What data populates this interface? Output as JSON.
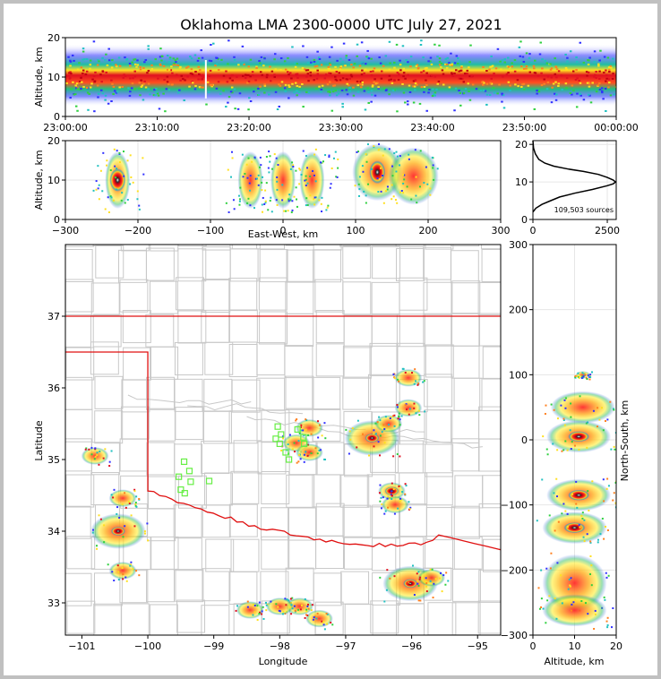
{
  "chart_data": [
    {
      "type": "heatmap",
      "panel": "time-altitude",
      "title": "Oklahoma LMA 2300-0000 UTC July 27, 2021",
      "ylabel": "Altitude, km",
      "xticks": [
        "23:00:00",
        "23:10:00",
        "23:20:00",
        "23:30:00",
        "23:40:00",
        "23:50:00",
        "00:00:00"
      ],
      "yticks": [
        "0",
        "10",
        "20"
      ],
      "xlim": [
        "23:00:00",
        "00:00:00"
      ],
      "ylim": [
        0,
        20
      ]
    },
    {
      "type": "heatmap",
      "panel": "east-west-altitude",
      "xlabel": "East-West, km",
      "ylabel": "Altitude, km",
      "xticks": [
        "−300",
        "−200",
        "−100",
        "0",
        "100",
        "200",
        "300"
      ],
      "yticks": [
        "0",
        "10",
        "20"
      ],
      "xlim": [
        -300,
        300
      ],
      "ylim": [
        0,
        20
      ],
      "clusters_km": [
        {
          "x": -228,
          "alt": 10
        },
        {
          "x": -45,
          "alt": 10
        },
        {
          "x": 0,
          "alt": 10
        },
        {
          "x": 40,
          "alt": 10
        },
        {
          "x": 130,
          "alt": 12
        },
        {
          "x": 180,
          "alt": 11
        }
      ]
    },
    {
      "type": "line",
      "panel": "altitude-histogram",
      "annotation": "109,503 sources",
      "xticks": [
        "0",
        "2500"
      ],
      "yticks": [
        "0",
        "10",
        "20"
      ],
      "xlim": [
        0,
        2800
      ],
      "ylim": [
        0,
        21
      ],
      "series": [
        {
          "values": [
            [
              0,
              2
            ],
            [
              100,
              3
            ],
            [
              300,
              4
            ],
            [
              600,
              5
            ],
            [
              900,
              6
            ],
            [
              1400,
              7
            ],
            [
              2000,
              8
            ],
            [
              2500,
              9
            ],
            [
              2700,
              9.5
            ],
            [
              2780,
              10
            ],
            [
              2700,
              10.5
            ],
            [
              2500,
              11.2
            ],
            [
              2200,
              12
            ],
            [
              1700,
              12.8
            ],
            [
              1200,
              13.4
            ],
            [
              700,
              14.2
            ],
            [
              400,
              15
            ],
            [
              200,
              16
            ],
            [
              80,
              17.5
            ],
            [
              20,
              19
            ],
            [
              0,
              21
            ]
          ]
        }
      ]
    },
    {
      "type": "heatmap",
      "panel": "plan-view-map",
      "xlabel": "Longitude",
      "ylabel": "Latitude",
      "xticks": [
        "−101",
        "−100",
        "−99",
        "−98",
        "−97",
        "−96",
        "−95"
      ],
      "yticks": [
        "33",
        "34",
        "35",
        "36",
        "37"
      ],
      "xlim": [
        -101.25,
        -94.65
      ],
      "ylim": [
        32.55,
        38.0
      ],
      "stations": [
        {
          "lon": -98.03,
          "lat": 35.46
        },
        {
          "lon": -97.98,
          "lat": 35.35
        },
        {
          "lon": -98.06,
          "lat": 35.29
        },
        {
          "lon": -98.0,
          "lat": 35.22
        },
        {
          "lon": -97.91,
          "lat": 35.1
        },
        {
          "lon": -97.86,
          "lat": 35.0
        },
        {
          "lon": -97.73,
          "lat": 35.42
        },
        {
          "lon": -97.64,
          "lat": 35.31
        },
        {
          "lon": -97.63,
          "lat": 35.22
        },
        {
          "lon": -99.45,
          "lat": 34.97
        },
        {
          "lon": -99.37,
          "lat": 34.84
        },
        {
          "lon": -99.53,
          "lat": 34.76
        },
        {
          "lon": -99.35,
          "lat": 34.69
        },
        {
          "lon": -99.5,
          "lat": 34.58
        },
        {
          "lon": -99.44,
          "lat": 34.53
        },
        {
          "lon": -99.07,
          "lat": 34.7
        }
      ],
      "clusters": [
        {
          "lon": -100.45,
          "lat": 34.0
        },
        {
          "lon": -100.38,
          "lat": 34.46
        },
        {
          "lon": -100.38,
          "lat": 33.45
        },
        {
          "lon": -97.75,
          "lat": 35.23
        },
        {
          "lon": -97.55,
          "lat": 35.44
        },
        {
          "lon": -97.55,
          "lat": 35.1
        },
        {
          "lon": -96.6,
          "lat": 35.3
        },
        {
          "lon": -96.35,
          "lat": 35.5
        },
        {
          "lon": -96.05,
          "lat": 35.72
        },
        {
          "lon": -96.3,
          "lat": 34.56
        },
        {
          "lon": -96.25,
          "lat": 34.37
        },
        {
          "lon": -96.02,
          "lat": 33.27
        },
        {
          "lon": -95.7,
          "lat": 33.35
        },
        {
          "lon": -97.7,
          "lat": 32.95
        },
        {
          "lon": -98.0,
          "lat": 32.95
        },
        {
          "lon": -98.45,
          "lat": 32.9
        },
        {
          "lon": -97.4,
          "lat": 32.78
        },
        {
          "lon": -96.05,
          "lat": 36.14
        },
        {
          "lon": -100.8,
          "lat": 35.05
        }
      ]
    },
    {
      "type": "heatmap",
      "panel": "altitude-north-south",
      "xlabel": "Altitude, km",
      "ylabel": "North-South, km",
      "xticks": [
        "0",
        "10",
        "20"
      ],
      "yticks": [
        "300",
        "200",
        "100",
        "0",
        "−100",
        "−200",
        "−300"
      ],
      "xlim": [
        0,
        20
      ],
      "ylim": [
        -300,
        300
      ],
      "clusters_km": [
        {
          "ns": 100,
          "alt": 12
        },
        {
          "ns": 50,
          "alt": 12
        },
        {
          "ns": 5,
          "alt": 11
        },
        {
          "ns": -85,
          "alt": 11
        },
        {
          "ns": -135,
          "alt": 10
        },
        {
          "ns": -220,
          "alt": 10
        },
        {
          "ns": -262,
          "alt": 10
        }
      ]
    }
  ]
}
